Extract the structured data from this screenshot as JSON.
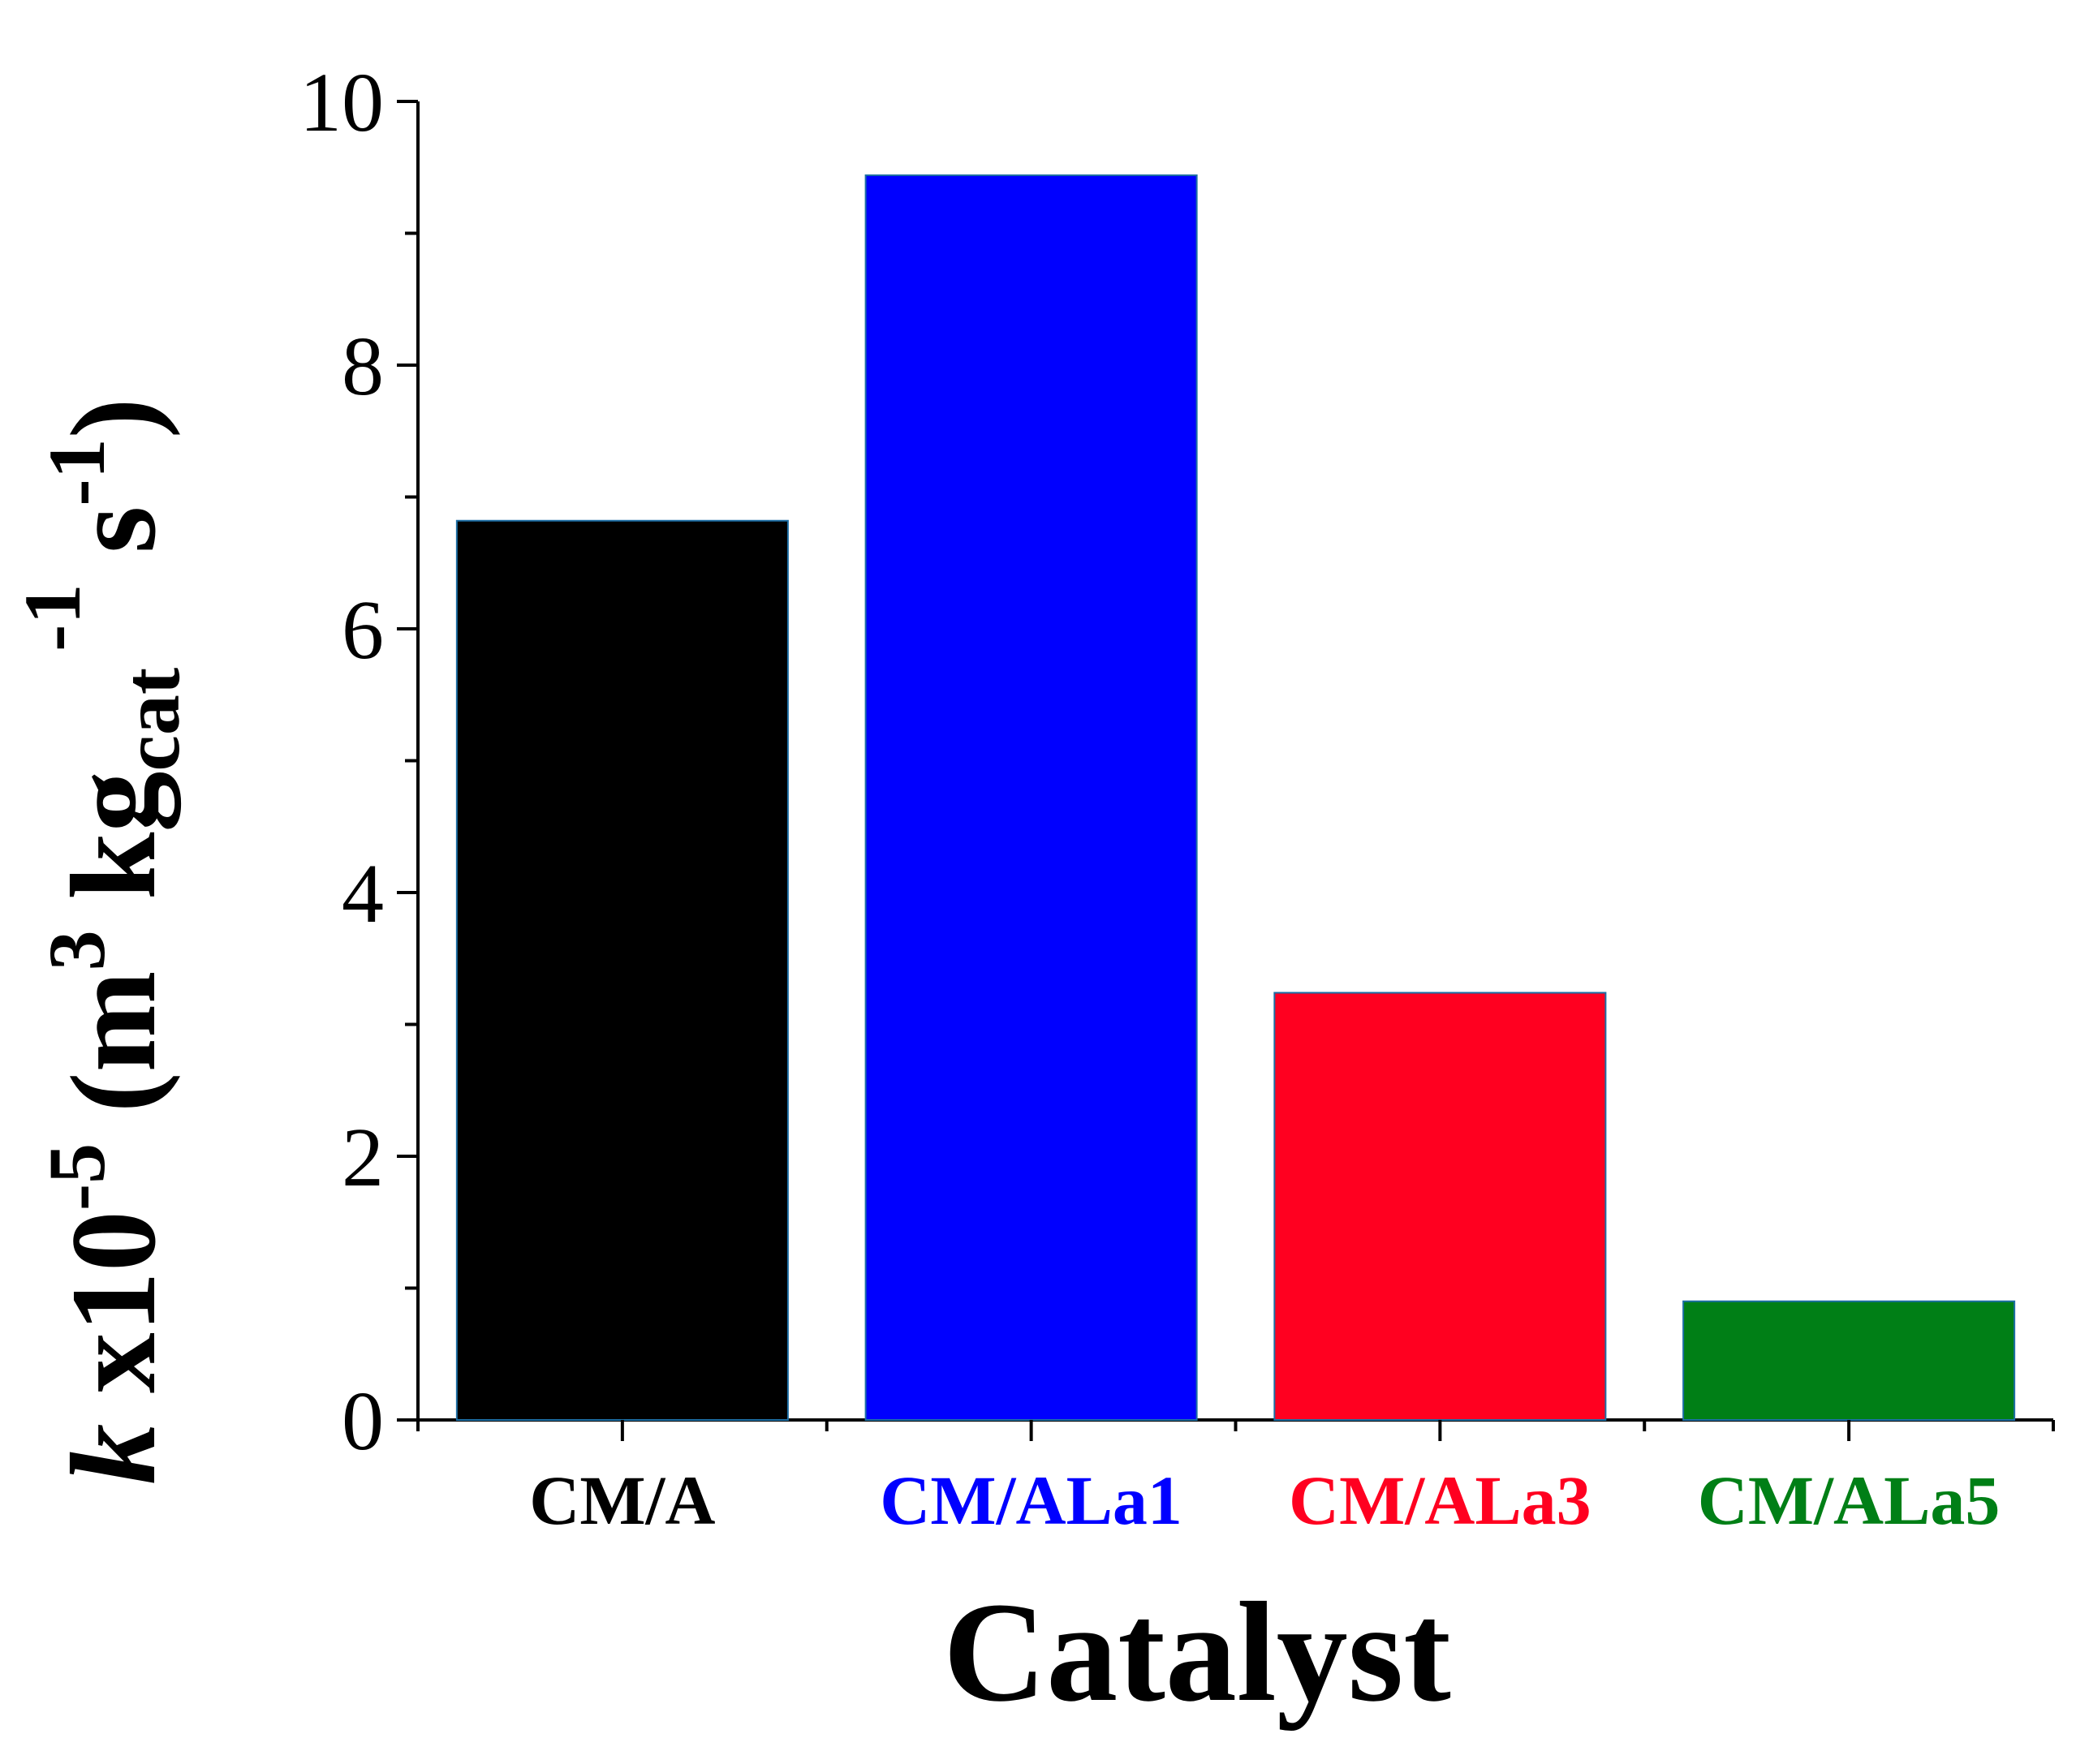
{
  "chart_data": {
    "type": "bar",
    "categories": [
      "CM/A",
      "CM/ALa1",
      "CM/ALa3",
      "CM/ALa5"
    ],
    "values": [
      6.82,
      9.44,
      3.24,
      0.9
    ],
    "colors": [
      "#000000",
      "#0000ff",
      "#ff0020",
      "#007f16"
    ],
    "ylim": [
      0,
      10
    ],
    "yticks": [
      0,
      2,
      4,
      6,
      8,
      10
    ],
    "yminor_step": 1,
    "xlabel": "Catalyst",
    "ylabel": {
      "k": "k",
      "x10": " x10",
      "exp1": "-5",
      "open": " (m",
      "exp2": "3",
      "kg": " kg",
      "sub": "cat",
      "exp3": "-1",
      "s": " s",
      "exp4": "-1",
      "close": ")"
    },
    "grid": false,
    "legend": "none"
  }
}
